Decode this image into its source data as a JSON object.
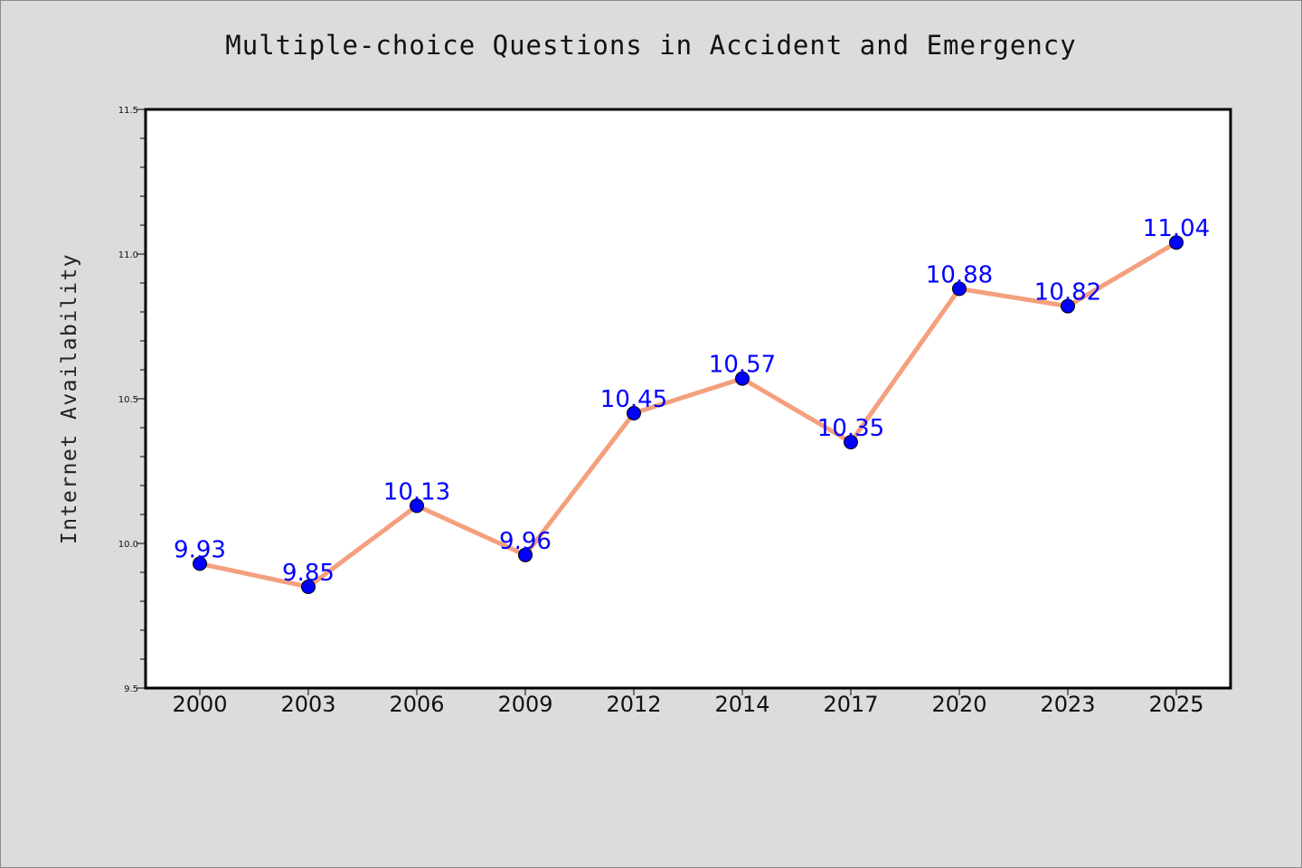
{
  "chart_data": {
    "type": "line",
    "title": "Multiple-choice Questions in Accident and Emergency",
    "xlabel": "",
    "ylabel": "Internet Availability",
    "categories": [
      "2000",
      "2003",
      "2006",
      "2009",
      "2012",
      "2014",
      "2017",
      "2020",
      "2023",
      "2025"
    ],
    "series": [
      {
        "values": [
          9.93,
          9.85,
          10.13,
          9.96,
          10.45,
          10.57,
          10.35,
          10.88,
          10.82,
          11.04
        ]
      }
    ],
    "data_labels": [
      "9.93",
      "9.85",
      "10.13",
      "9.96",
      "10.45",
      "10.57",
      "10.35",
      "10.88",
      "10.82",
      "11.04"
    ],
    "ylim": [
      9.5,
      11.5
    ],
    "y_ticks": [
      "9.5",
      "10.0",
      "10.5",
      "11.0",
      "11.5"
    ],
    "grid": false,
    "legend": "none",
    "colors": {
      "line": "#f4a07e",
      "marker": "#0000ff",
      "data_label": "#0000ff",
      "plot_background": "#ffffff",
      "figure_background": "#dcdcdc"
    }
  }
}
